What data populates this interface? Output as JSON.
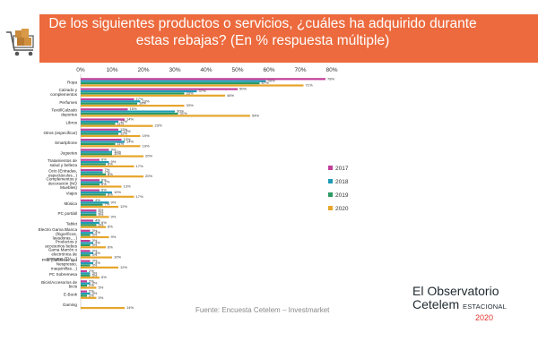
{
  "title": "De los siguientes productos o servicios, ¿cuáles ha adquirido durante estas rebajas? (En %  respuesta  múltiple)",
  "source": "Fuente: Encuesta Cetelem – Investmarket",
  "logo": {
    "line1": "El Observatorio",
    "brand": "Cetelem",
    "tag": "ESTACIONAL",
    "year": "2020"
  },
  "icons": {
    "header": "shopping-cart-icon"
  },
  "colors": {
    "header": "#ec6a3d",
    "s2017": "#c23f9a",
    "s2018": "#1e9bb4",
    "s2019": "#2d9a63",
    "s2020": "#e6a52a"
  },
  "chart_data": {
    "type": "bar",
    "orientation": "horizontal",
    "title": "De los siguientes productos o servicios, ¿cuáles ha adquirido durante estas rebajas? (En %  respuesta  múltiple)",
    "xlim": [
      0,
      80
    ],
    "x_ticks": [
      "0%",
      "10%",
      "20%",
      "30%",
      "40%",
      "50%",
      "60%",
      "70%",
      "80%"
    ],
    "categories": [
      "Ropa",
      "Calzado y complementos",
      "Perfumes",
      "Textil/Calzado deportes",
      "Libros",
      "Otros (especificar)",
      "Smartphone",
      "Juguetes",
      "Tratamientos de salud y belleza",
      "Ocio (Entradas, espectáculos...)",
      "Complementos y decoración (NO Muebles)",
      "Viajes",
      "Música",
      "PC portátil",
      "Tablet",
      "Electro Gama Blanca (frigoríficos, lavadoras,…)",
      "Productos y accesorios bebes",
      "Gama Marrón o electrónica de consumo (TV,…)",
      "PAE (cafeteras tipo Nespresso, maquinillas…)",
      "PC Sobremesa",
      "Bicis/Accesorios de bicis",
      "E-Book",
      "Gaming"
    ],
    "series": [
      {
        "name": "2017",
        "values": [
          78,
          50,
          17,
          15,
          14,
          12,
          13,
          9,
          6,
          7,
          6,
          6,
          4,
          5,
          4,
          3,
          3,
          3,
          3,
          2,
          2,
          2,
          null
        ],
        "labels": [
          "78%",
          "50%",
          "17%",
          "15%",
          "14%",
          "12%",
          "13%",
          "9%",
          "6%",
          "7%",
          "6%",
          "6%",
          "4%",
          "5%",
          "4%",
          "3%",
          "3%",
          "3%",
          "3%",
          "2%",
          "2%",
          "2%",
          ""
        ]
      },
      {
        "name": "2018",
        "values": [
          59,
          37,
          19,
          30,
          12,
          13,
          14,
          10,
          9,
          7,
          7,
          10,
          9,
          5,
          6,
          4,
          4,
          4,
          4,
          3,
          3,
          3,
          null
        ],
        "labels": [
          "59%",
          "37%",
          "19%",
          "30%",
          "12%",
          "13%",
          "14%",
          "10%",
          "9%",
          "7%",
          "7%",
          "10%",
          "9%",
          "5%",
          "6%",
          "4%",
          "4%",
          "4%",
          "4%",
          "3%",
          "3%",
          "3%",
          ""
        ]
      },
      {
        "name": "2019",
        "values": [
          57,
          33,
          18,
          31,
          11,
          12,
          11,
          10,
          8,
          8,
          6,
          8,
          7,
          5,
          5,
          3,
          3,
          3,
          3,
          3,
          2,
          2,
          null
        ],
        "labels": [
          "57%",
          "33%",
          "18%",
          "31%",
          "11%",
          "12%",
          "11%",
          "10%",
          "8%",
          "8%",
          "6%",
          "8%",
          "7%",
          "5%",
          "5%",
          "3%",
          "3%",
          "3%",
          "3%",
          "3%",
          "2%",
          "2%",
          ""
        ]
      },
      {
        "name": "2020",
        "values": [
          71,
          46,
          33,
          54,
          23,
          19,
          19,
          20,
          17,
          20,
          13,
          17,
          12,
          9,
          8,
          9,
          8,
          10,
          12,
          6,
          5,
          5,
          14
        ],
        "labels": [
          "71%",
          "46%",
          "33%",
          "54%",
          "23%",
          "19%",
          "19%",
          "20%",
          "17%",
          "20%",
          "13%",
          "17%",
          "12%",
          "9%",
          "8%",
          "9%",
          "8%",
          "10%",
          "12%",
          "6%",
          "5%",
          "5%",
          "14%"
        ]
      }
    ],
    "legend_position": "right",
    "grid": false
  }
}
